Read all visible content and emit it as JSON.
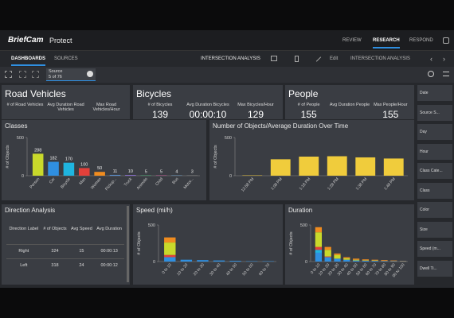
{
  "nav": {
    "logo": "BriefCam",
    "product": "Protect",
    "tabs": [
      "REVIEW",
      "RESEARCH",
      "RESPOND"
    ]
  },
  "toolbar": {
    "tabs": [
      "DASHBOARDS",
      "SOURCES"
    ],
    "dashboard": "INTERSECTION ANALYSIS",
    "edit": "Edit",
    "current": "INTERSECTION ANALYSIS"
  },
  "source": {
    "label": "Source",
    "count": "5 of 76"
  },
  "kpis": [
    {
      "title": "Road Vehicles",
      "metrics": [
        {
          "label": "# of Road Vehicles"
        },
        {
          "label": "Avg Duration Road Vehicles"
        },
        {
          "label": "Max Road Vehicles/Hour"
        }
      ]
    },
    {
      "title": "Bicycles",
      "metrics": [
        {
          "label": "# of Bicycles",
          "value": "139"
        },
        {
          "label": "Avg Duration Bicycles",
          "value": "00:00:10"
        },
        {
          "label": "Max Bicycles/Hour",
          "value": "129"
        }
      ]
    },
    {
      "title": "People",
      "metrics": [
        {
          "label": "# of People",
          "value": "155"
        },
        {
          "label": "Avg Duration People"
        },
        {
          "label": "Max People/Hour",
          "value": "155"
        }
      ]
    }
  ],
  "chart_data": [
    {
      "type": "bar",
      "title": "Classes",
      "y_label": "# of Objects",
      "categories": [
        "Person",
        "Car",
        "Bicycle",
        "Man",
        "Woman",
        "Pickup...",
        "Truck",
        "Animals",
        "Child",
        "Bus",
        "Motor..."
      ],
      "values": [
        288,
        182,
        170,
        100,
        50,
        11,
        10,
        5,
        5,
        4,
        3
      ],
      "colors": [
        "#c9d92b",
        "#2f8fe0",
        "#1fb5e0",
        "#e2403a",
        "#f08c1f",
        "#5a8fd0",
        "#8a6fd0",
        "#4fb07a",
        "#d05fa0",
        "#7ab0e0",
        "#a0a0a0"
      ],
      "value_labels": true,
      "ylim": [
        0,
        500
      ],
      "yticks": [
        0,
        500
      ]
    },
    {
      "type": "bar",
      "title": "Number of Objects/Average Duration Over Time",
      "y_label": "# of Objects",
      "categories": [
        "12:58 PM",
        "1:08 PM",
        "1:18 PM",
        "1:28 PM",
        "1:38 PM",
        "1:48 PM"
      ],
      "values": [
        5,
        215,
        250,
        255,
        240,
        225
      ],
      "color": "#f0cc3c",
      "ylim": [
        0,
        500
      ],
      "yticks": [
        0,
        500
      ]
    },
    {
      "type": "stacked",
      "title": "Speed (mi/h)",
      "y_label": "# of Objects",
      "categories": [
        "0 to 10",
        "10 to 20",
        "20 to 30",
        "30 to 40",
        "40 to 50",
        "50 to 60",
        "60 to 70"
      ],
      "series": [
        {
          "color": "#2f8fe0",
          "values": [
            60,
            25,
            20,
            15,
            10,
            5,
            5
          ]
        },
        {
          "color": "#e2403a",
          "values": [
            30,
            0,
            0,
            0,
            0,
            0,
            0
          ]
        },
        {
          "color": "#c9d92b",
          "values": [
            170,
            0,
            0,
            0,
            0,
            0,
            0
          ]
        },
        {
          "color": "#f08c1f",
          "values": [
            70,
            0,
            0,
            0,
            0,
            0,
            0
          ]
        }
      ],
      "ylim": [
        0,
        500
      ],
      "yticks": [
        0,
        500
      ]
    },
    {
      "type": "stacked",
      "title": "Duration",
      "y_label": "# of Objects",
      "categories": [
        "0 to 10",
        "10 to 20",
        "20 to 30",
        "30 to 40",
        "40 to 50",
        "50 to 60",
        "60 to 70",
        "70 to 80",
        "80 to 90",
        "90 to 100"
      ],
      "series": [
        {
          "color": "#2f8fe0",
          "values": [
            120,
            60,
            40,
            25,
            15,
            12,
            10,
            8,
            6,
            5
          ]
        },
        {
          "color": "#1fb5e0",
          "values": [
            40,
            0,
            0,
            0,
            0,
            0,
            0,
            0,
            0,
            0
          ]
        },
        {
          "color": "#e2403a",
          "values": [
            40,
            10,
            0,
            0,
            0,
            0,
            0,
            0,
            0,
            0
          ]
        },
        {
          "color": "#c9d92b",
          "values": [
            200,
            90,
            50,
            20,
            10,
            5,
            5,
            0,
            0,
            0
          ]
        },
        {
          "color": "#f08c1f",
          "values": [
            70,
            40,
            20,
            15,
            15,
            13,
            10,
            12,
            9,
            5
          ]
        }
      ],
      "ylim": [
        0,
        500
      ],
      "yticks": [
        0,
        500
      ]
    }
  ],
  "table": {
    "title": "Direction Analysis",
    "columns": [
      "Direction Label",
      "# of Objects",
      "Avg Speed",
      "Avg Duration"
    ],
    "rows": [
      [
        "Right",
        "324",
        "15",
        "00:00:13"
      ],
      [
        "Left",
        "318",
        "24",
        "00:00:12"
      ]
    ]
  },
  "filters": [
    "Date",
    "Source S...",
    "Day",
    "Hour",
    "Class Cate...",
    "Class",
    "Color",
    "Size",
    "Speed (m...",
    "Dwell Ti..."
  ]
}
